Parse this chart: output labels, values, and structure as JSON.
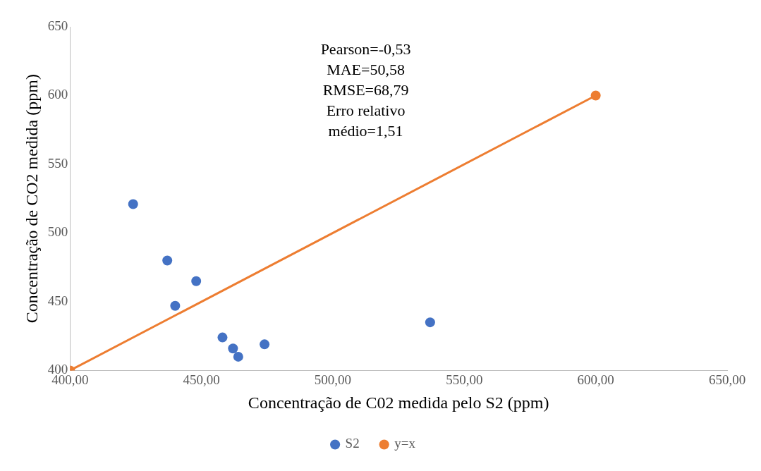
{
  "chart_data": {
    "type": "scatter",
    "xlabel": "Concentração de C02 medida pelo S2 (ppm)",
    "ylabel": "Concentração de CO2 medida (ppm)",
    "xlim": [
      400,
      650
    ],
    "xticks": [
      {
        "value": 400,
        "label": "400,00"
      },
      {
        "value": 450,
        "label": "450,00"
      },
      {
        "value": 500,
        "label": "500,00"
      },
      {
        "value": 550,
        "label": "550,00"
      },
      {
        "value": 600,
        "label": "600,00"
      },
      {
        "value": 650,
        "label": "650,00"
      }
    ],
    "ylim": [
      400,
      650
    ],
    "yticks": [
      400,
      450,
      500,
      550,
      600,
      650
    ],
    "legend": "bottom",
    "marker": "circle",
    "annotations": [
      "Pearson=-0,53\nMAE=50,58\nRMSE=68,79\nErro relativo\nmédio=1,51"
    ],
    "series": [
      {
        "name": "S2",
        "color": "#4472c4",
        "x": [
          424,
          437,
          448,
          440,
          458,
          462,
          464,
          474,
          537
        ],
        "values": [
          521,
          480,
          465,
          447,
          424,
          416,
          410,
          419,
          435
        ]
      },
      {
        "name": "y=x",
        "type": "line",
        "color": "#ed7d31",
        "x": [
          400,
          600
        ],
        "values": [
          400,
          600
        ]
      }
    ]
  }
}
